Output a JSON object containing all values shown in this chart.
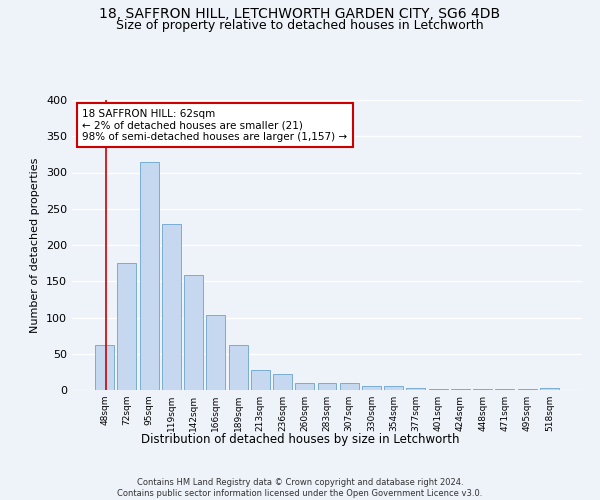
{
  "title1": "18, SAFFRON HILL, LETCHWORTH GARDEN CITY, SG6 4DB",
  "title2": "Size of property relative to detached houses in Letchworth",
  "xlabel": "Distribution of detached houses by size in Letchworth",
  "ylabel": "Number of detached properties",
  "categories": [
    "48sqm",
    "72sqm",
    "95sqm",
    "119sqm",
    "142sqm",
    "166sqm",
    "189sqm",
    "213sqm",
    "236sqm",
    "260sqm",
    "283sqm",
    "307sqm",
    "330sqm",
    "354sqm",
    "377sqm",
    "401sqm",
    "424sqm",
    "448sqm",
    "471sqm",
    "495sqm",
    "518sqm"
  ],
  "values": [
    62,
    175,
    315,
    229,
    158,
    103,
    62,
    27,
    22,
    9,
    10,
    10,
    6,
    5,
    3,
    2,
    2,
    1,
    1,
    2,
    3
  ],
  "bar_color": "#c5d8ef",
  "bar_edge_color": "#7aadd4",
  "annotation_text_line1": "18 SAFFRON HILL: 62sqm",
  "annotation_text_line2": "← 2% of detached houses are smaller (21)",
  "annotation_text_line3": "98% of semi-detached houses are larger (1,157) →",
  "annotation_box_color": "#ffffff",
  "annotation_box_edge_color": "#cc0000",
  "property_line_color": "#cc0000",
  "ylim": [
    0,
    400
  ],
  "yticks": [
    0,
    50,
    100,
    150,
    200,
    250,
    300,
    350,
    400
  ],
  "footer1": "Contains HM Land Registry data © Crown copyright and database right 2024.",
  "footer2": "Contains public sector information licensed under the Open Government Licence v3.0.",
  "bg_color": "#eef2f9",
  "grid_color": "#ffffff",
  "title_fontsize": 10,
  "subtitle_fontsize": 9
}
